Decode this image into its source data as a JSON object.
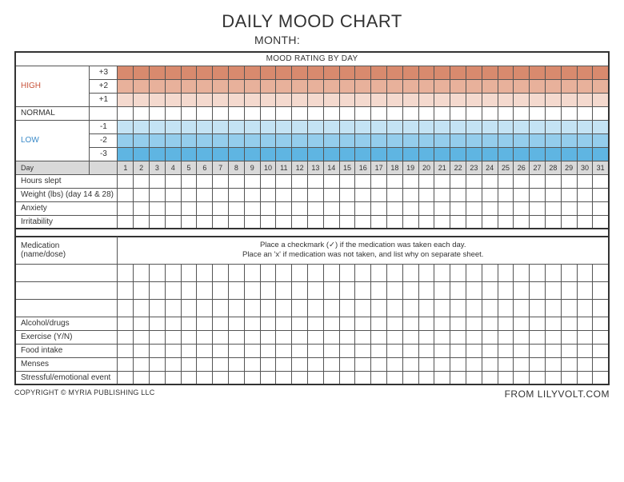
{
  "header": {
    "title": "DAILY MOOD CHART",
    "month_label": "MONTH:"
  },
  "mood_section": {
    "header": "MOOD RATING BY DAY",
    "high_label": "HIGH",
    "normal_label": "NORMAL",
    "low_label": "LOW",
    "levels_high": [
      "+3",
      "+2",
      "+1"
    ],
    "levels_low": [
      "-1",
      "-2",
      "-3"
    ],
    "high_colors": [
      "#d88a6e",
      "#e8b19b",
      "#f4d9ce"
    ],
    "low_colors": [
      "#c4e3f4",
      "#94cdec",
      "#5fb5e2"
    ],
    "day_label": "Day",
    "days": [
      "1",
      "2",
      "3",
      "4",
      "5",
      "6",
      "7",
      "8",
      "9",
      "10",
      "11",
      "12",
      "13",
      "14",
      "15",
      "16",
      "17",
      "18",
      "19",
      "20",
      "21",
      "22",
      "23",
      "24",
      "25",
      "26",
      "27",
      "28",
      "29",
      "30",
      "31"
    ]
  },
  "tracking_rows": [
    "Hours slept",
    "Weight (lbs) (day 14 & 28)",
    "Anxiety",
    "Irritability"
  ],
  "medication": {
    "label": "Medication\n(name/dose)",
    "instruction_line1": "Place a checkmark (✓) if the medication was taken each day.",
    "instruction_line2": "Place an 'x' if medication was not taken, and list why on separate sheet."
  },
  "bottom_rows": [
    "Alcohol/drugs",
    "Exercise (Y/N)",
    "Food intake",
    "Menses",
    "Stressful/emotional event"
  ],
  "footer": {
    "left": "COPYRIGHT © MYRIA PUBLISHING LLC",
    "right": "FROM LILYVOLT.COM"
  },
  "styling": {
    "day_header_bg": "#d9d9d9",
    "border_color": "#555555",
    "outer_border": "#333333",
    "high_text_color": "#c8533a",
    "low_text_color": "#3a8ac8",
    "title_fontsize": 22,
    "body_fontsize": 10,
    "num_day_cols": 31,
    "num_med_blank_rows": 3,
    "med_border_rows": 1
  }
}
